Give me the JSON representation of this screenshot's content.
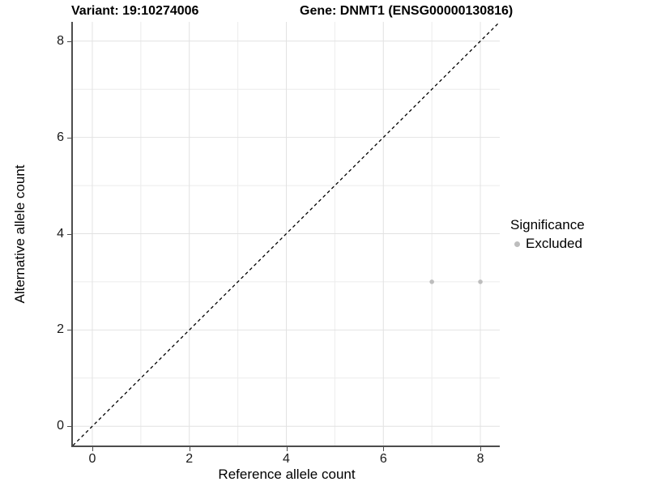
{
  "titles": {
    "variant": "Variant: 19:10274006",
    "gene": "Gene: DNMT1 (ENSG00000130816)"
  },
  "chart_data": {
    "type": "scatter",
    "xlabel": "Reference allele count",
    "ylabel": "Alternative allele count",
    "xlim": [
      -0.4,
      8.4
    ],
    "ylim": [
      -0.4,
      8.4
    ],
    "x_ticks": [
      0,
      2,
      4,
      6,
      8
    ],
    "y_ticks": [
      0,
      2,
      4,
      6,
      8
    ],
    "x_minor_ticks": [
      1,
      3,
      5,
      7
    ],
    "y_minor_ticks": [
      1,
      3,
      5,
      7
    ],
    "grid": true,
    "series": [
      {
        "name": "Excluded",
        "color": "#bdbdbd",
        "points": [
          [
            7,
            3
          ],
          [
            8,
            3
          ]
        ]
      }
    ],
    "reference_line": {
      "slope": 1,
      "intercept": 0,
      "style": "dashed",
      "color": "#000000"
    },
    "legend": {
      "title": "Significance",
      "position": "right",
      "entries": [
        "Excluded"
      ]
    }
  },
  "legend": {
    "title": "Significance",
    "items": [
      {
        "label": "Excluded",
        "color": "#bdbdbd"
      }
    ]
  },
  "colors": {
    "grid_major": "#e2e2e2",
    "grid_minor": "#ececec",
    "axis_line": "#4d4d4d",
    "tick_text": "#1a1a1a",
    "point": "#bdbdbd",
    "reference_line": "#000000",
    "background": "#ffffff"
  }
}
